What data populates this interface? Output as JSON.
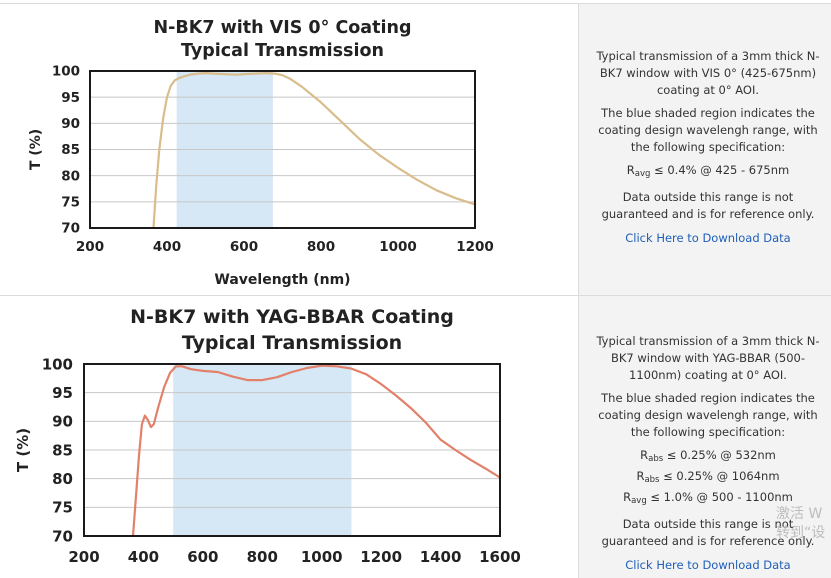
{
  "panels": [
    {
      "title_line1": "N-BK7 with VIS 0° Coating",
      "title_line2": "Typical Transmission",
      "description": "Typical transmission of a 3mm thick N-BK7 window with VIS 0° (425-675nm) coating at 0° AOI.",
      "shaded_note": "The blue shaded region indicates the coating design wavelengh range, with the following specification:",
      "specs": [
        {
          "sym": "R",
          "sub": "avg",
          "text": " ≤ 0.4% @ 425 - 675nm"
        }
      ],
      "disclaimer": "Data outside this range is not guaranteed and is for reference only.",
      "download_label": "Click Here to Download Data"
    },
    {
      "title_line1": "N-BK7 with YAG-BBAR Coating",
      "title_line2": "Typical Transmission",
      "description": "Typical transmission of a 3mm thick N-BK7 window with YAG-BBAR (500-1100nm) coating at 0° AOI.",
      "shaded_note": "The blue shaded region indicates the coating design wavelengh range, with the following specification:",
      "specs": [
        {
          "sym": "R",
          "sub": "abs",
          "text": " ≤ 0.25% @ 532nm"
        },
        {
          "sym": "R",
          "sub": "abs",
          "text": " ≤ 0.25% @ 1064nm"
        },
        {
          "sym": "R",
          "sub": "avg",
          "text": " ≤ 1.0% @ 500 - 1100nm"
        }
      ],
      "disclaimer": "Data outside this range is not guaranteed and is for reference only.",
      "download_label": "Click Here to Download Data"
    }
  ],
  "watermark": {
    "line1": "激活 W",
    "line2": "转到“设"
  },
  "chart_data": [
    {
      "type": "line",
      "title": "N-BK7 with VIS 0° Coating Typical Transmission",
      "xlabel": "Wavelength (nm)",
      "ylabel": "T (%)",
      "xlim": [
        200,
        1200
      ],
      "ylim": [
        70,
        100
      ],
      "xticks": [
        200,
        400,
        600,
        800,
        1000,
        1200
      ],
      "yticks": [
        70,
        75,
        80,
        85,
        90,
        95,
        100
      ],
      "grid": "horizontal",
      "shaded_range": [
        425,
        675
      ],
      "shade_color": "#d6e8f5",
      "line_color": "#d9bd8c",
      "series": [
        {
          "x": [
            365,
            372,
            380,
            390,
            400,
            410,
            420,
            430,
            440,
            460,
            480,
            500,
            520,
            550,
            580,
            600,
            630,
            660,
            680,
            700,
            720,
            750,
            800,
            850,
            900,
            950,
            1000,
            1050,
            1100,
            1150,
            1200
          ],
          "values": [
            70,
            78,
            85,
            91,
            95,
            97.2,
            98.2,
            98.6,
            98.9,
            99.3,
            99.5,
            99.6,
            99.5,
            99.4,
            99.3,
            99.4,
            99.5,
            99.6,
            99.5,
            99.2,
            98.5,
            97,
            94,
            90.5,
            87,
            84,
            81.5,
            79.2,
            77.2,
            75.7,
            74.5
          ]
        }
      ]
    },
    {
      "type": "line",
      "title": "N-BK7 with YAG-BBAR Coating Typical Transmission",
      "xlabel": "",
      "ylabel": "T (%)",
      "xlim": [
        200,
        1600
      ],
      "ylim": [
        70,
        100
      ],
      "xticks": [
        200,
        400,
        600,
        800,
        1000,
        1200,
        1400,
        1600
      ],
      "yticks": [
        70,
        75,
        80,
        85,
        90,
        95,
        100
      ],
      "grid": "horizontal",
      "shaded_range": [
        500,
        1100
      ],
      "shade_color": "#d6e8f5",
      "line_color": "#e2806a",
      "series": [
        {
          "x": [
            365,
            375,
            385,
            395,
            405,
            415,
            425,
            435,
            450,
            470,
            490,
            510,
            530,
            560,
            600,
            650,
            700,
            750,
            800,
            850,
            900,
            950,
            1000,
            1050,
            1100,
            1150,
            1200,
            1250,
            1300,
            1350,
            1400,
            1450,
            1500,
            1550,
            1600
          ],
          "values": [
            70,
            77,
            84,
            89.5,
            91,
            90.2,
            89,
            89.5,
            92.5,
            96,
            98.5,
            99.6,
            99.6,
            99.1,
            98.8,
            98.6,
            97.8,
            97.2,
            97.2,
            97.7,
            98.6,
            99.3,
            99.7,
            99.6,
            99.2,
            98.2,
            96.5,
            94.5,
            92.3,
            89.8,
            86.8,
            85,
            83.3,
            81.8,
            80.2
          ]
        }
      ]
    }
  ]
}
